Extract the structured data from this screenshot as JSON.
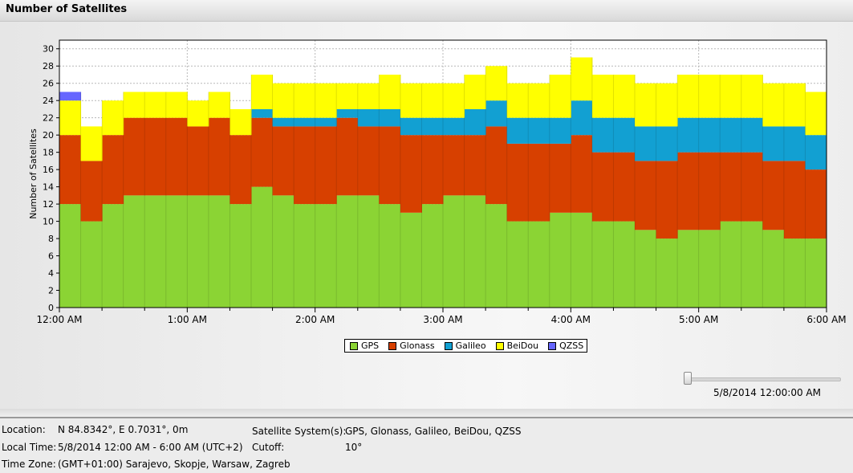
{
  "header": {
    "title": "Number of Satellites"
  },
  "colors": {
    "GPS": "#8bd434",
    "Glonass": "#d74000",
    "Galileo": "#12a0d2",
    "BeiDou": "#ffff00",
    "QZSS": "#6666ff"
  },
  "legend": [
    {
      "name": "GPS",
      "color": "#8bd434"
    },
    {
      "name": "Glonass",
      "color": "#d74000"
    },
    {
      "name": "Galileo",
      "color": "#12a0d2"
    },
    {
      "name": "BeiDou",
      "color": "#ffff00"
    },
    {
      "name": "QZSS",
      "color": "#6666ff"
    }
  ],
  "chart_data": {
    "type": "area",
    "stacked": true,
    "title": "",
    "ylabel": "Number of Satellites",
    "xlabel": "",
    "ylim": [
      0,
      31
    ],
    "yticks": [
      0,
      2,
      4,
      6,
      8,
      10,
      12,
      14,
      16,
      18,
      20,
      22,
      24,
      26,
      28,
      30
    ],
    "xticks": [
      "12:00 AM",
      "1:00 AM",
      "2:00 AM",
      "3:00 AM",
      "4:00 AM",
      "5:00 AM",
      "6:00 AM"
    ],
    "grid": true,
    "legend_position": "bottom",
    "interval_minutes": 10,
    "series": [
      {
        "name": "GPS",
        "values": [
          12,
          10,
          12,
          13,
          13,
          13,
          13,
          13,
          12,
          14,
          13,
          12,
          12,
          13,
          13,
          12,
          11,
          12,
          13,
          13,
          12,
          10,
          10,
          11,
          11,
          10,
          10,
          9,
          8,
          9,
          9,
          10,
          10,
          9,
          8,
          8
        ]
      },
      {
        "name": "Glonass",
        "values": [
          8,
          7,
          8,
          9,
          9,
          9,
          8,
          9,
          8,
          8,
          8,
          9,
          9,
          9,
          8,
          9,
          9,
          8,
          7,
          7,
          9,
          9,
          9,
          8,
          9,
          8,
          8,
          8,
          9,
          9,
          9,
          8,
          8,
          8,
          9,
          8
        ]
      },
      {
        "name": "Galileo",
        "values": [
          0,
          0,
          0,
          0,
          0,
          0,
          0,
          0,
          0,
          1,
          1,
          1,
          1,
          1,
          2,
          2,
          2,
          2,
          2,
          3,
          3,
          3,
          3,
          3,
          4,
          4,
          4,
          4,
          4,
          4,
          4,
          4,
          4,
          4,
          4,
          4
        ]
      },
      {
        "name": "BeiDou",
        "values": [
          4,
          4,
          4,
          3,
          3,
          3,
          3,
          3,
          3,
          4,
          4,
          4,
          4,
          3,
          3,
          4,
          4,
          4,
          4,
          4,
          4,
          4,
          4,
          5,
          5,
          5,
          5,
          5,
          5,
          5,
          5,
          5,
          5,
          5,
          5,
          5
        ]
      },
      {
        "name": "QZSS",
        "values": [
          1,
          0,
          0,
          0,
          0,
          0,
          0,
          0,
          0,
          0,
          0,
          0,
          0,
          0,
          0,
          0,
          0,
          0,
          0,
          0,
          0,
          0,
          0,
          0,
          0,
          0,
          0,
          0,
          0,
          0,
          0,
          0,
          0,
          0,
          0,
          0
        ]
      }
    ]
  },
  "slider": {
    "value": "5/8/2014 12:00:00 AM"
  },
  "info": {
    "location_label": "Location:",
    "location_value": "N 84.8342°, E 0.7031°, 0m",
    "local_time_label": "Local Time:",
    "local_time_value": "5/8/2014 12:00 AM - 6:00 AM (UTC+2)",
    "time_zone_label": "Time Zone:",
    "time_zone_value": "(GMT+01:00) Sarajevo, Skopje, Warsaw, Zagreb",
    "systems_label": "Satellite System(s):",
    "systems_value": "GPS, Glonass, Galileo, BeiDou, QZSS",
    "cutoff_label": "Cutoff:",
    "cutoff_value": "10°"
  }
}
